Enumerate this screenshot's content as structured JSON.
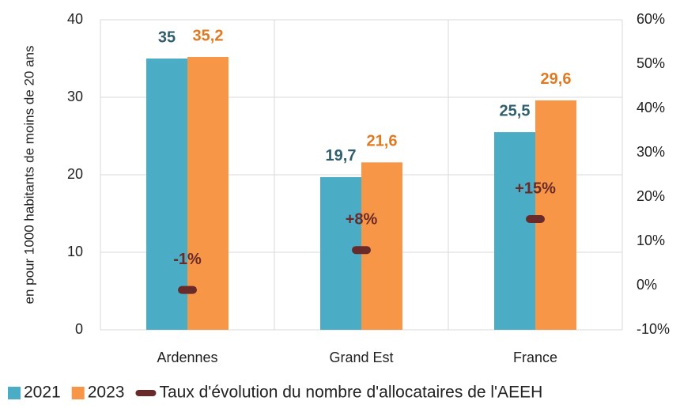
{
  "chart_data": {
    "type": "bar",
    "y_axis_label": "en pour 1000 habitants de moins de 20 ans",
    "categories": [
      "Ardennes",
      "Grand Est",
      "France"
    ],
    "series": [
      {
        "name": "2021",
        "color": "#4bacc6",
        "label_color": "#2f5f6f",
        "values": [
          35,
          19.7,
          25.5
        ],
        "value_labels": [
          "35",
          "19,7",
          "25,5"
        ]
      },
      {
        "name": "2023",
        "color": "#f79646",
        "label_color": "#e07a22",
        "values": [
          35.2,
          21.6,
          29.6
        ],
        "value_labels": [
          "35,2",
          "21,6",
          "29,6"
        ]
      },
      {
        "name": "Taux d'évolution du nombre d'allocataires de l'AEEH",
        "color": "#6b2a2a",
        "axis": "y2",
        "marker": "dash",
        "values": [
          -1,
          8,
          15
        ],
        "value_labels": [
          "-1%",
          "+8%",
          "+15%"
        ]
      }
    ],
    "ylim": [
      0,
      40
    ],
    "yticks": [
      0,
      10,
      20,
      30,
      40
    ],
    "y2lim": [
      -10,
      60
    ],
    "y2ticks": [
      {
        "value": -10,
        "label": "-10%"
      },
      {
        "value": 0,
        "label": "0%"
      },
      {
        "value": 10,
        "label": "10%"
      },
      {
        "value": 20,
        "label": "20%"
      },
      {
        "value": 30,
        "label": "30%"
      },
      {
        "value": 40,
        "label": "40%"
      },
      {
        "value": 50,
        "label": "50%"
      },
      {
        "value": 60,
        "label": "60%"
      }
    ],
    "grid": true,
    "legend": "bottom"
  }
}
